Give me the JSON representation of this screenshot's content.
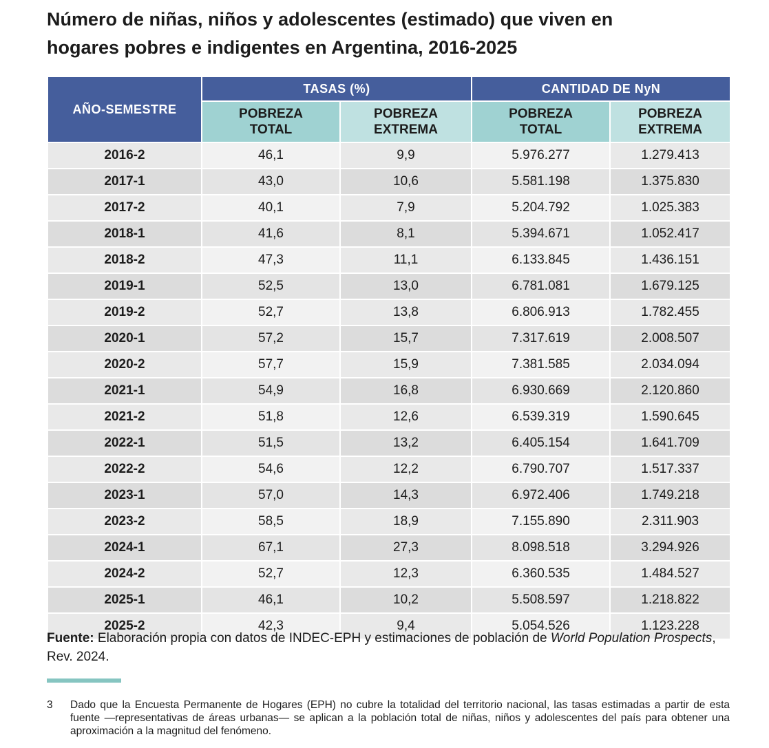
{
  "title": {
    "line1": "Número de niñas, niños y adolescentes (estimado) que viven en",
    "line2": "hogares pobres e indigentes en Argentina, 2016-2025"
  },
  "table": {
    "row_header": "AÑO-SEMESTRE",
    "group_rates": "TASAS (%)",
    "group_counts": "CANTIDAD DE NyN",
    "sub_headers": [
      [
        "POBREZA",
        "TOTAL"
      ],
      [
        "POBREZA",
        "EXTREMA"
      ],
      [
        "POBREZA",
        "TOTAL"
      ],
      [
        "POBREZA",
        "EXTREMA"
      ]
    ],
    "rows": [
      [
        "2016-2",
        "46,1",
        "9,9",
        "5.976.277",
        "1.279.413"
      ],
      [
        "2017-1",
        "43,0",
        "10,6",
        "5.581.198",
        "1.375.830"
      ],
      [
        "2017-2",
        "40,1",
        "7,9",
        "5.204.792",
        "1.025.383"
      ],
      [
        "2018-1",
        "41,6",
        "8,1",
        "5.394.671",
        "1.052.417"
      ],
      [
        "2018-2",
        "47,3",
        "11,1",
        "6.133.845",
        "1.436.151"
      ],
      [
        "2019-1",
        "52,5",
        "13,0",
        "6.781.081",
        "1.679.125"
      ],
      [
        "2019-2",
        "52,7",
        "13,8",
        "6.806.913",
        "1.782.455"
      ],
      [
        "2020-1",
        "57,2",
        "15,7",
        "7.317.619",
        "2.008.507"
      ],
      [
        "2020-2",
        "57,7",
        "15,9",
        "7.381.585",
        "2.034.094"
      ],
      [
        "2021-1",
        "54,9",
        "16,8",
        "6.930.669",
        "2.120.860"
      ],
      [
        "2021-2",
        "51,8",
        "12,6",
        "6.539.319",
        "1.590.645"
      ],
      [
        "2022-1",
        "51,5",
        "13,2",
        "6.405.154",
        "1.641.709"
      ],
      [
        "2022-2",
        "54,6",
        "12,2",
        "6.790.707",
        "1.517.337"
      ],
      [
        "2023-1",
        "57,0",
        "14,3",
        "6.972.406",
        "1.749.218"
      ],
      [
        "2023-2",
        "58,5",
        "18,9",
        "7.155.890",
        "2.311.903"
      ],
      [
        "2024-1",
        "67,1",
        "27,3",
        "8.098.518",
        "3.294.926"
      ],
      [
        "2024-2",
        "52,7",
        "12,3",
        "6.360.535",
        "1.484.527"
      ],
      [
        "2025-1",
        "46,1",
        "10,2",
        "5.508.597",
        "1.218.822"
      ],
      [
        "2025-2",
        "42,3",
        "9,4",
        "5.054.526",
        "1.123.228"
      ]
    ]
  },
  "source": {
    "label": "Fuente:",
    "text": "Elaboración propia con datos de INDEC-EPH y estimaciones de población de",
    "italic": "World Population Prospects",
    "suffix": ", Rev. 2024."
  },
  "footnote": {
    "number": "3",
    "text": "Dado que la Encuesta Permanente de Hogares (EPH) no cubre la totalidad del territorio nacional, las tasas estimadas a partir de esta fuente —representativas de áreas urbanas— se aplican a la población total de niñas, niños y adolescentes del país para obtener una aproximación a la magnitud del fenómeno."
  },
  "colors": {
    "header_blue": "#455e9c",
    "header_teal": "#9fd2d2",
    "accent_rule": "#86c5c1"
  }
}
